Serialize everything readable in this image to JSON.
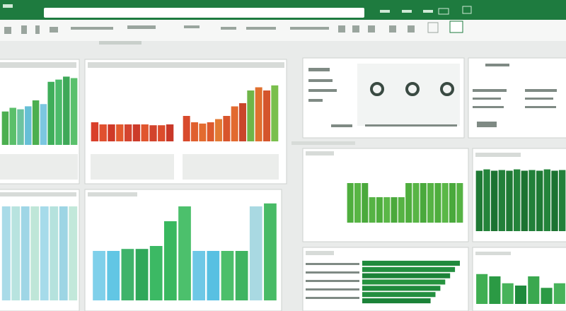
{
  "charts": [
    {
      "type": "bar",
      "ylim": [
        0,
        100
      ],
      "values": [
        45,
        50,
        48,
        52,
        60,
        55,
        85,
        88,
        92,
        90
      ],
      "colors": [
        "#4caf50",
        "#5bbf6a",
        "#6cc3a0",
        "#66bfd6",
        "#4caf50",
        "#7cc7e0",
        "#3fae5a",
        "#4cbb6a",
        "#3ea858",
        "#5ac06c"
      ]
    },
    {
      "type": "bar",
      "ylim": [
        0,
        100
      ],
      "values": [
        45,
        40,
        40,
        40,
        40,
        40,
        40,
        38,
        38,
        40
      ],
      "colors": [
        "#d9402b",
        "#e0502f",
        "#cf3a28",
        "#e35a2e",
        "#d44530",
        "#cc3b2a",
        "#e0552e",
        "#d2432c",
        "#dc4c2c",
        "#c93828"
      ]
    },
    {
      "type": "bar",
      "ylim": [
        0,
        100
      ],
      "values": [
        40,
        30,
        28,
        30,
        35,
        40,
        55,
        60,
        80,
        85,
        80,
        88
      ],
      "colors": [
        "#d84a2c",
        "#e0602e",
        "#e36b2f",
        "#dd5a2d",
        "#e27a33",
        "#d8552c",
        "#e26a2f",
        "#c9452a",
        "#6fb548",
        "#e0702f",
        "#d4552c",
        "#7abf4c"
      ]
    },
    {
      "type": "bar",
      "ylim": [
        0,
        100
      ],
      "values": [
        95,
        95,
        95,
        95,
        95,
        95,
        95,
        95
      ],
      "colors": [
        "#a9dbe8",
        "#b8e3df",
        "#9fd6e6",
        "#bfe6d8",
        "#a6dbea",
        "#b5e2dd",
        "#9dd5e4",
        "#c2e8da"
      ]
    },
    {
      "type": "bar",
      "ylim": [
        0,
        100
      ],
      "values": [
        50,
        50,
        52,
        52,
        55,
        80,
        95,
        50,
        50,
        50,
        50,
        95,
        98
      ],
      "colors": [
        "#7fd0ea",
        "#62c6e4",
        "#3fb36a",
        "#2fa85a",
        "#3cb964",
        "#39b85f",
        "#4cc06c",
        "#6ec8e6",
        "#58c0e2",
        "#4cbf6a",
        "#3fb461",
        "#a9d9e2",
        "#48bb66"
      ]
    },
    {
      "type": "bar",
      "ylim": [
        0,
        100
      ],
      "values": [
        70,
        70,
        70,
        45,
        45,
        45,
        45,
        45,
        70,
        70,
        70,
        70,
        70,
        70,
        70,
        70
      ],
      "colors": [
        "#4fae3e",
        "#58b545",
        "#4aa93c",
        "#56b344",
        "#4fae3e",
        "#5bb748",
        "#4aa93c",
        "#56b344",
        "#4fae3e",
        "#58b545",
        "#4aa93c",
        "#56b344",
        "#4fae3e",
        "#5bb748",
        "#4aa93c",
        "#56b344"
      ]
    },
    {
      "type": "bar",
      "ylim": [
        0,
        100
      ],
      "values": [
        90,
        92,
        90,
        91,
        90,
        92,
        90,
        91,
        90,
        92,
        90,
        91
      ],
      "colors": [
        "#1f7a35",
        "#24843b",
        "#1c7331",
        "#22803a",
        "#1f7a35",
        "#24843b",
        "#1c7331",
        "#22803a",
        "#1f7a35",
        "#24843b",
        "#1c7331",
        "#22803a"
      ]
    },
    {
      "type": "hbar",
      "ylim": [
        0,
        100
      ],
      "values": [
        100,
        95,
        90,
        85,
        80,
        75,
        70
      ],
      "colors": [
        "#1f8a3c",
        "#238f40",
        "#1b8238",
        "#26933f",
        "#1f8a3c",
        "#238f40",
        "#1b8238"
      ]
    },
    {
      "type": "bar",
      "ylim": [
        0,
        100
      ],
      "values": [
        65,
        60,
        45,
        40,
        60,
        35,
        45
      ],
      "colors": [
        "#3fae52",
        "#2b9a44",
        "#47b35a",
        "#1f8a3c",
        "#3aa84f",
        "#2b9a44",
        "#47b35a"
      ]
    }
  ]
}
